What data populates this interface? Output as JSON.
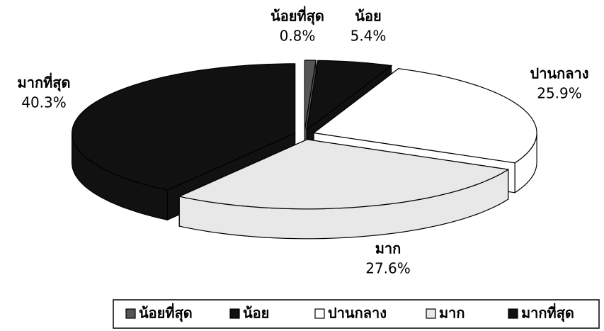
{
  "chart_data": {
    "type": "pie3d",
    "categories": [
      "น้อยที่สุด",
      "น้อย",
      "ปานกลาง",
      "มาก",
      "มากที่สุด"
    ],
    "values": [
      0.8,
      5.4,
      25.9,
      27.6,
      40.3
    ],
    "value_labels": [
      "0.8%",
      "5.4%",
      "25.9%",
      "27.6%",
      "40.3%"
    ],
    "colors": [
      "#555555",
      "#111111",
      "#ffffff",
      "#e8e8e8",
      "#111111"
    ],
    "legend": "bottom"
  }
}
